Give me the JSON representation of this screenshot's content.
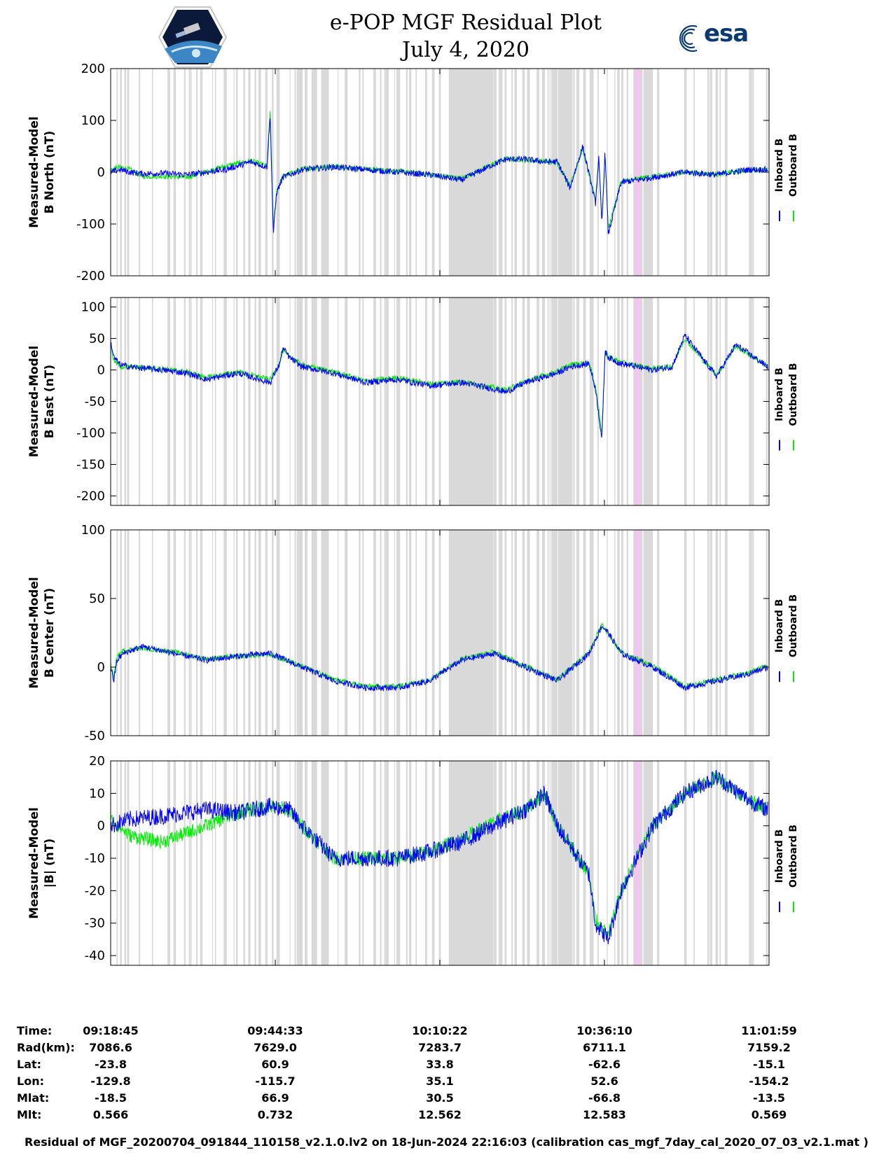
{
  "header": {
    "title_line1": "e-POP MGF Residual Plot",
    "title_line2": "July 4, 2020",
    "left_logo": "cassiope-mission-logo",
    "right_logo": "esa-logo",
    "right_logo_text": "esa"
  },
  "colors": {
    "inboard": "#0000ff",
    "outboard": "#00ee00",
    "gap_shading": "#d9d9d9",
    "highlight_band": "#f2c6ef"
  },
  "legend": {
    "inboard_label": "Inboard B",
    "outboard_label": "Outboard B"
  },
  "chart_data": [
    {
      "type": "line",
      "ylabel_lines": [
        "Measured-Model",
        "B North (nT)"
      ],
      "ylim": [
        -200,
        200
      ],
      "yticks": [
        -200,
        -100,
        0,
        100,
        200
      ],
      "series": [
        {
          "name": "Inboard B",
          "x_min": [
            0,
            1.5,
            3,
            5,
            8,
            12,
            18,
            22,
            24.5,
            25,
            25.5,
            26,
            27,
            30,
            35,
            40,
            45,
            50,
            55,
            60,
            62,
            65,
            68,
            70,
            72,
            74,
            76,
            76.5,
            77,
            77.5,
            78,
            80,
            85,
            90,
            95,
            100,
            103
          ],
          "values": [
            0,
            5,
            0,
            -3,
            -2,
            -5,
            5,
            20,
            10,
            110,
            -120,
            -40,
            -10,
            5,
            10,
            5,
            0,
            -5,
            -15,
            15,
            25,
            25,
            20,
            20,
            -30,
            50,
            -60,
            30,
            -100,
            40,
            -120,
            -20,
            -10,
            0,
            -5,
            5,
            5
          ]
        },
        {
          "name": "Outboard B",
          "x_min": [
            0,
            1.5,
            3,
            5,
            8,
            12,
            18,
            22,
            24.5,
            25,
            25.5,
            26,
            27,
            30,
            35,
            40,
            45,
            50,
            55,
            60,
            62,
            65,
            68,
            70,
            72,
            74,
            76,
            76.5,
            77,
            77.5,
            78,
            80,
            85,
            90,
            95,
            100,
            103
          ],
          "values": [
            5,
            10,
            5,
            -8,
            -8,
            -10,
            12,
            22,
            12,
            120,
            -110,
            -35,
            -8,
            6,
            12,
            6,
            2,
            -4,
            -12,
            16,
            26,
            24,
            21,
            18,
            -25,
            45,
            -55,
            28,
            -95,
            38,
            -110,
            -18,
            -8,
            0,
            -4,
            4,
            5
          ]
        }
      ]
    },
    {
      "type": "line",
      "ylabel_lines": [
        "Measured-Model",
        "B East (nT)"
      ],
      "ylim": [
        -215,
        115
      ],
      "yticks": [
        -200,
        -150,
        -100,
        -50,
        0,
        50,
        100
      ],
      "series": [
        {
          "name": "Inboard B",
          "x_min": [
            0,
            0.5,
            1.5,
            3,
            8,
            12,
            15,
            20,
            25,
            26,
            26.5,
            27,
            28,
            30,
            35,
            40,
            45,
            50,
            55,
            60,
            62,
            65,
            70,
            72,
            75,
            76,
            77,
            77.5,
            78,
            80,
            85,
            88,
            90,
            93,
            95,
            98,
            103
          ],
          "values": [
            45,
            20,
            8,
            5,
            0,
            -5,
            -15,
            -5,
            -20,
            0,
            10,
            35,
            20,
            5,
            -5,
            -20,
            -15,
            -25,
            -20,
            -30,
            -35,
            -20,
            -5,
            5,
            10,
            -30,
            -110,
            30,
            20,
            10,
            0,
            5,
            55,
            15,
            -10,
            40,
            5
          ]
        },
        {
          "name": "Outboard B",
          "x_min": [
            0,
            0.5,
            1.5,
            3,
            8,
            12,
            15,
            20,
            25,
            26,
            26.5,
            27,
            28,
            30,
            35,
            40,
            45,
            50,
            55,
            60,
            62,
            65,
            70,
            72,
            75,
            76,
            77,
            77.5,
            78,
            80,
            85,
            88,
            90,
            93,
            95,
            98,
            103
          ],
          "values": [
            40,
            15,
            5,
            5,
            2,
            -3,
            -12,
            -3,
            -15,
            2,
            12,
            30,
            22,
            8,
            -3,
            -18,
            -12,
            -22,
            -18,
            -28,
            -32,
            -18,
            -2,
            8,
            12,
            -25,
            -100,
            28,
            22,
            12,
            2,
            6,
            50,
            14,
            -8,
            38,
            6
          ]
        }
      ]
    },
    {
      "type": "line",
      "ylabel_lines": [
        "Measured-Model",
        "B Center (nT)"
      ],
      "ylim": [
        -50,
        100
      ],
      "yticks": [
        -50,
        0,
        50,
        100
      ],
      "series": [
        {
          "name": "Inboard B",
          "x_min": [
            0,
            0.5,
            1,
            2,
            5,
            10,
            15,
            20,
            25,
            30,
            35,
            40,
            45,
            50,
            55,
            60,
            65,
            70,
            75,
            77,
            78,
            80,
            85,
            90,
            95,
            100,
            103
          ],
          "values": [
            0,
            -10,
            5,
            10,
            15,
            10,
            5,
            8,
            10,
            0,
            -10,
            -15,
            -15,
            -10,
            5,
            10,
            0,
            -10,
            10,
            30,
            25,
            10,
            0,
            -15,
            -10,
            -5,
            0
          ]
        },
        {
          "name": "Outboard B",
          "x_min": [
            0,
            0.5,
            1,
            2,
            5,
            10,
            15,
            20,
            25,
            30,
            35,
            40,
            45,
            50,
            55,
            60,
            65,
            70,
            75,
            77,
            78,
            80,
            85,
            90,
            95,
            100,
            103
          ],
          "values": [
            2,
            -8,
            8,
            12,
            14,
            11,
            6,
            8,
            9,
            1,
            -9,
            -14,
            -14,
            -9,
            6,
            11,
            1,
            -9,
            11,
            31,
            24,
            11,
            1,
            -14,
            -9,
            -4,
            1
          ]
        }
      ]
    },
    {
      "type": "line",
      "ylabel_lines": [
        "Measured-Model",
        "|B| (nT)"
      ],
      "ylim": [
        -43,
        20
      ],
      "yticks": [
        -40,
        -30,
        -20,
        -10,
        0,
        10,
        20
      ],
      "series": [
        {
          "name": "Inboard B",
          "x_min": [
            0,
            3,
            8,
            15,
            20,
            25,
            28,
            30,
            35,
            40,
            45,
            50,
            55,
            60,
            65,
            68,
            70,
            75,
            76,
            78,
            80,
            85,
            90,
            95,
            100,
            103
          ],
          "values": [
            0,
            2,
            3,
            5,
            4,
            6,
            5,
            0,
            -10,
            -10,
            -10,
            -8,
            -5,
            0,
            5,
            10,
            0,
            -15,
            -30,
            -35,
            -20,
            0,
            10,
            15,
            8,
            5
          ]
        },
        {
          "name": "Outboard B",
          "x_min": [
            0,
            3,
            8,
            15,
            20,
            25,
            28,
            30,
            35,
            40,
            45,
            50,
            55,
            60,
            65,
            68,
            70,
            75,
            76,
            78,
            80,
            85,
            90,
            95,
            100,
            103
          ],
          "values": [
            2,
            -3,
            -5,
            0,
            4,
            6,
            5,
            0,
            -10,
            -10,
            -10,
            -8,
            -4,
            1,
            5,
            10,
            0,
            -15,
            -29,
            -34,
            -20,
            0,
            10,
            15,
            8,
            5
          ]
        }
      ]
    }
  ],
  "time_axis": {
    "columns": [
      {
        "time": "09:18:45",
        "rad": "7086.6",
        "lat": "-23.8",
        "lon": "-129.8",
        "mlat": "-18.5",
        "mlt": "0.566"
      },
      {
        "time": "09:44:33",
        "rad": "7629.0",
        "lat": "60.9",
        "lon": "-115.7",
        "mlat": "66.9",
        "mlt": "0.732"
      },
      {
        "time": "10:10:22",
        "rad": "7283.7",
        "lat": "33.8",
        "lon": "35.1",
        "mlat": "30.5",
        "mlt": "12.562"
      },
      {
        "time": "10:36:10",
        "rad": "6711.1",
        "lat": "-62.6",
        "lon": "52.6",
        "mlat": "-66.8",
        "mlt": "12.583"
      },
      {
        "time": "11:01:59",
        "rad": "7159.2",
        "lat": "-15.1",
        "lon": "-154.2",
        "mlat": "-13.5",
        "mlt": "0.569"
      }
    ],
    "row_labels": {
      "time": "Time:",
      "rad": "Rad(km):",
      "lat": "Lat:",
      "lon": "Lon:",
      "mlat": "Mlat:",
      "mlt": "Mlt:"
    }
  },
  "footer": "Residual of MGF_20200704_091844_110158_v2.1.0.lv2 on 18-Jun-2024 22:16:03 (calibration cas_mgf_7day_cal_2020_07_03_v2.1.mat )"
}
